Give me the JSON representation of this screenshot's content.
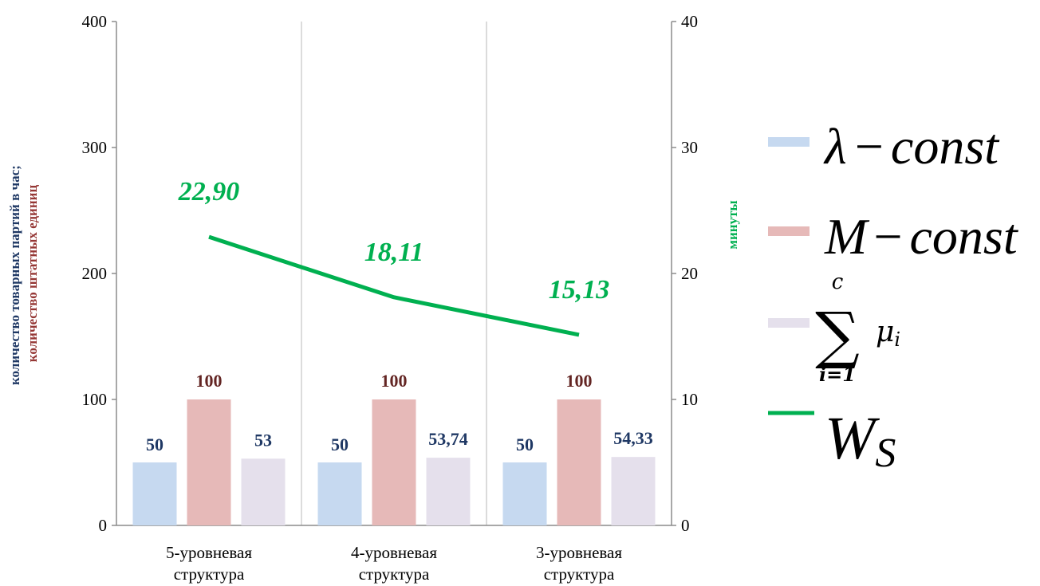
{
  "chart_data": {
    "type": "bar",
    "categories": [
      [
        "5-уровневая",
        "структура"
      ],
      [
        "4-уровневая",
        "структура"
      ],
      [
        "3-уровневая",
        "структура"
      ]
    ],
    "series": [
      {
        "name": "λ − const",
        "axis": "left",
        "color": "#c6d9f0",
        "label_color": "#1f3864",
        "values": [
          50,
          50,
          50
        ],
        "labels": [
          "50",
          "50",
          "50"
        ]
      },
      {
        "name": "M − const",
        "axis": "left",
        "color": "#e6b9b8",
        "label_color": "#632523",
        "values": [
          100,
          100,
          100
        ],
        "labels": [
          "100",
          "100",
          "100"
        ]
      },
      {
        "name": "Σ μi (i=1..c)",
        "axis": "left",
        "color": "#e5e0ec",
        "label_color": "#1f3864",
        "values": [
          53,
          53.74,
          54.33
        ],
        "labels": [
          "53",
          "53,74",
          "54,33"
        ]
      },
      {
        "name": "Ws",
        "axis": "right",
        "type": "line",
        "color": "#00b050",
        "label_color": "#00b050",
        "values": [
          22.9,
          18.11,
          15.13
        ],
        "labels": [
          "22,90",
          "18,11",
          "15,13"
        ]
      }
    ],
    "y_left": {
      "label_part1": "количество товарных партий в час;",
      "label_part2": "количество штатных единиц",
      "label_part1_color": "#1f3864",
      "label_part2_color": "#953735",
      "min": 0,
      "max": 400,
      "ticks": [
        "0",
        "100",
        "200",
        "300",
        "400"
      ]
    },
    "y_right": {
      "label": "минуты",
      "label_color": "#00b050",
      "min": 0,
      "max": 40,
      "ticks": [
        "0",
        "10",
        "20",
        "30",
        "40"
      ]
    },
    "grid": "vertical category dividers only",
    "legend": {
      "placement": "right",
      "items": [
        {
          "symbol": "box",
          "color": "#c6d9f0",
          "icon": "lambda-const-formula"
        },
        {
          "symbol": "box",
          "color": "#e6b9b8",
          "icon": "m-const-formula"
        },
        {
          "symbol": "box",
          "color": "#e5e0ec",
          "icon": "sum-mu-formula"
        },
        {
          "symbol": "line",
          "color": "#00b050",
          "icon": "ws-formula"
        }
      ],
      "formula_text": {
        "lambda": "λ",
        "minus": "−",
        "const": "const",
        "m": "M",
        "sigma": "∑",
        "upper": "c",
        "lower": "i=1",
        "mu": "μ",
        "mu_sub": "i",
        "w": "W",
        "w_sub": "S"
      }
    }
  }
}
